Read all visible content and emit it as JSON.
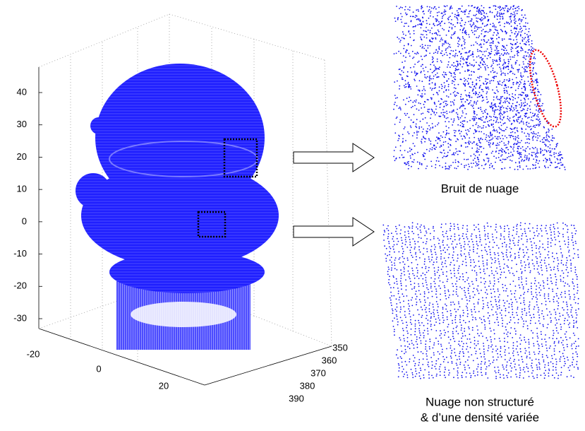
{
  "plot": {
    "z_ticks": [
      40,
      30,
      20,
      10,
      0,
      -10,
      -20,
      -30
    ],
    "x_ticks": [
      -20,
      0,
      20
    ],
    "y_ticks": [
      350,
      360,
      370,
      380,
      390
    ]
  },
  "insets": [
    {
      "caption": "Bruit de nuage"
    },
    {
      "caption_lines": [
        "Nuage non structuré",
        "& d’une densité variée"
      ]
    }
  ]
}
